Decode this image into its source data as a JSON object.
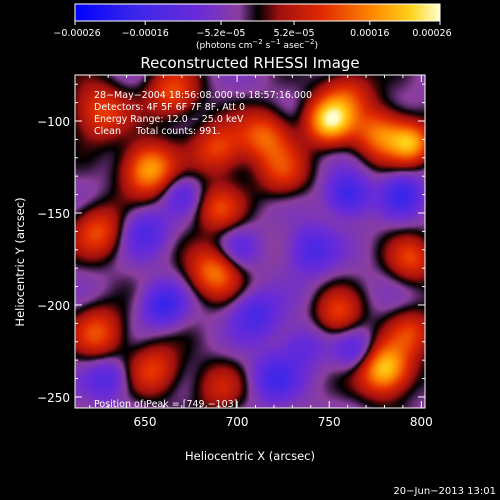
{
  "chart_data": {
    "type": "heatmap",
    "title": "Reconstructed RHESSI Image",
    "xlabel": "Heliocentric X (arcsec)",
    "ylabel": "Heliocentric Y (arcsec)",
    "xlim": [
      612,
      802
    ],
    "ylim": [
      -256,
      -75
    ],
    "x_ticks": [
      650,
      700,
      750,
      800
    ],
    "x_tick_labels": [
      "650",
      "700",
      "750",
      "800"
    ],
    "y_ticks": [
      -100,
      -150,
      -200,
      -250
    ],
    "y_tick_labels": [
      "−100",
      "−150",
      "−200",
      "−250"
    ],
    "colorbar": {
      "min": -0.00026,
      "max": 0.00026,
      "ticks": [
        -0.00026,
        -0.00016,
        -5.2e-05,
        5.2e-05,
        0.00016,
        0.00026
      ],
      "tick_labels": [
        "−0.00026",
        "−0.00016",
        "−5.2e−05",
        "5.2e−05",
        "0.00016",
        "0.00026"
      ],
      "units_parts": [
        "(photons cm",
        "−2",
        " s",
        "−1",
        " asec",
        "−2",
        ")"
      ]
    },
    "annotations": [
      "28−May−2004 18:56:08.000 to 18:57:16.000",
      "Detectors: 4F 5F 6F 7F 8F, Att 0",
      "Energy Range: 12.0 − 25.0 keV",
      "Clean     Total counts: 991."
    ],
    "peak_label": "Position of Peak = [749,−103]",
    "peak": [
      749,
      -103
    ],
    "features": [
      {
        "x": 780,
        "y": -235,
        "amp": 1.0,
        "s": 10
      },
      {
        "x": 750,
        "y": -100,
        "amp": 0.95,
        "s": 9
      },
      {
        "x": 652,
        "y": -126,
        "amp": 0.85,
        "s": 10
      },
      {
        "x": 778,
        "y": -107,
        "amp": 0.7,
        "s": 10
      },
      {
        "x": 688,
        "y": -182,
        "amp": 0.7,
        "s": 10
      },
      {
        "x": 795,
        "y": -112,
        "amp": 0.75,
        "s": 8
      },
      {
        "x": 715,
        "y": -108,
        "amp": 0.6,
        "s": 10
      },
      {
        "x": 690,
        "y": -115,
        "amp": 0.55,
        "s": 10
      },
      {
        "x": 625,
        "y": -95,
        "amp": 0.55,
        "s": 11
      },
      {
        "x": 625,
        "y": -160,
        "amp": 0.55,
        "s": 10
      },
      {
        "x": 690,
        "y": -148,
        "amp": 0.5,
        "s": 9
      },
      {
        "x": 625,
        "y": -215,
        "amp": 0.55,
        "s": 10
      },
      {
        "x": 655,
        "y": -235,
        "amp": 0.5,
        "s": 10
      },
      {
        "x": 665,
        "y": -85,
        "amp": 0.55,
        "s": 10
      },
      {
        "x": 755,
        "y": -205,
        "amp": 0.5,
        "s": 9
      },
      {
        "x": 795,
        "y": -175,
        "amp": 0.5,
        "s": 9
      },
      {
        "x": 725,
        "y": -128,
        "amp": 0.45,
        "s": 10
      },
      {
        "x": 760,
        "y": -85,
        "amp": 0.45,
        "s": 10
      },
      {
        "x": 795,
        "y": -215,
        "amp": 0.45,
        "s": 9
      },
      {
        "x": 690,
        "y": -245,
        "amp": 0.35,
        "s": 10
      },
      {
        "x": 760,
        "y": -140,
        "amp": -0.6,
        "s": 8
      },
      {
        "x": 790,
        "y": -140,
        "amp": -0.5,
        "s": 8
      },
      {
        "x": 660,
        "y": -200,
        "amp": -0.55,
        "s": 8
      },
      {
        "x": 740,
        "y": -170,
        "amp": -0.45,
        "s": 9
      },
      {
        "x": 710,
        "y": -205,
        "amp": -0.45,
        "s": 9
      },
      {
        "x": 650,
        "y": -160,
        "amp": -0.4,
        "s": 9
      },
      {
        "x": 670,
        "y": -140,
        "amp": -0.3,
        "s": 7
      },
      {
        "x": 765,
        "y": -225,
        "amp": -0.4,
        "s": 8
      },
      {
        "x": 720,
        "y": -240,
        "amp": -0.45,
        "s": 9
      },
      {
        "x": 630,
        "y": -240,
        "amp": -0.4,
        "s": 8
      },
      {
        "x": 735,
        "y": -222,
        "amp": -0.3,
        "s": 9
      },
      {
        "x": 700,
        "y": -170,
        "amp": -0.3,
        "s": 8
      }
    ],
    "base_level": -0.12
  },
  "footer": {
    "timestamp": "20−Jun−2013 13:01"
  }
}
